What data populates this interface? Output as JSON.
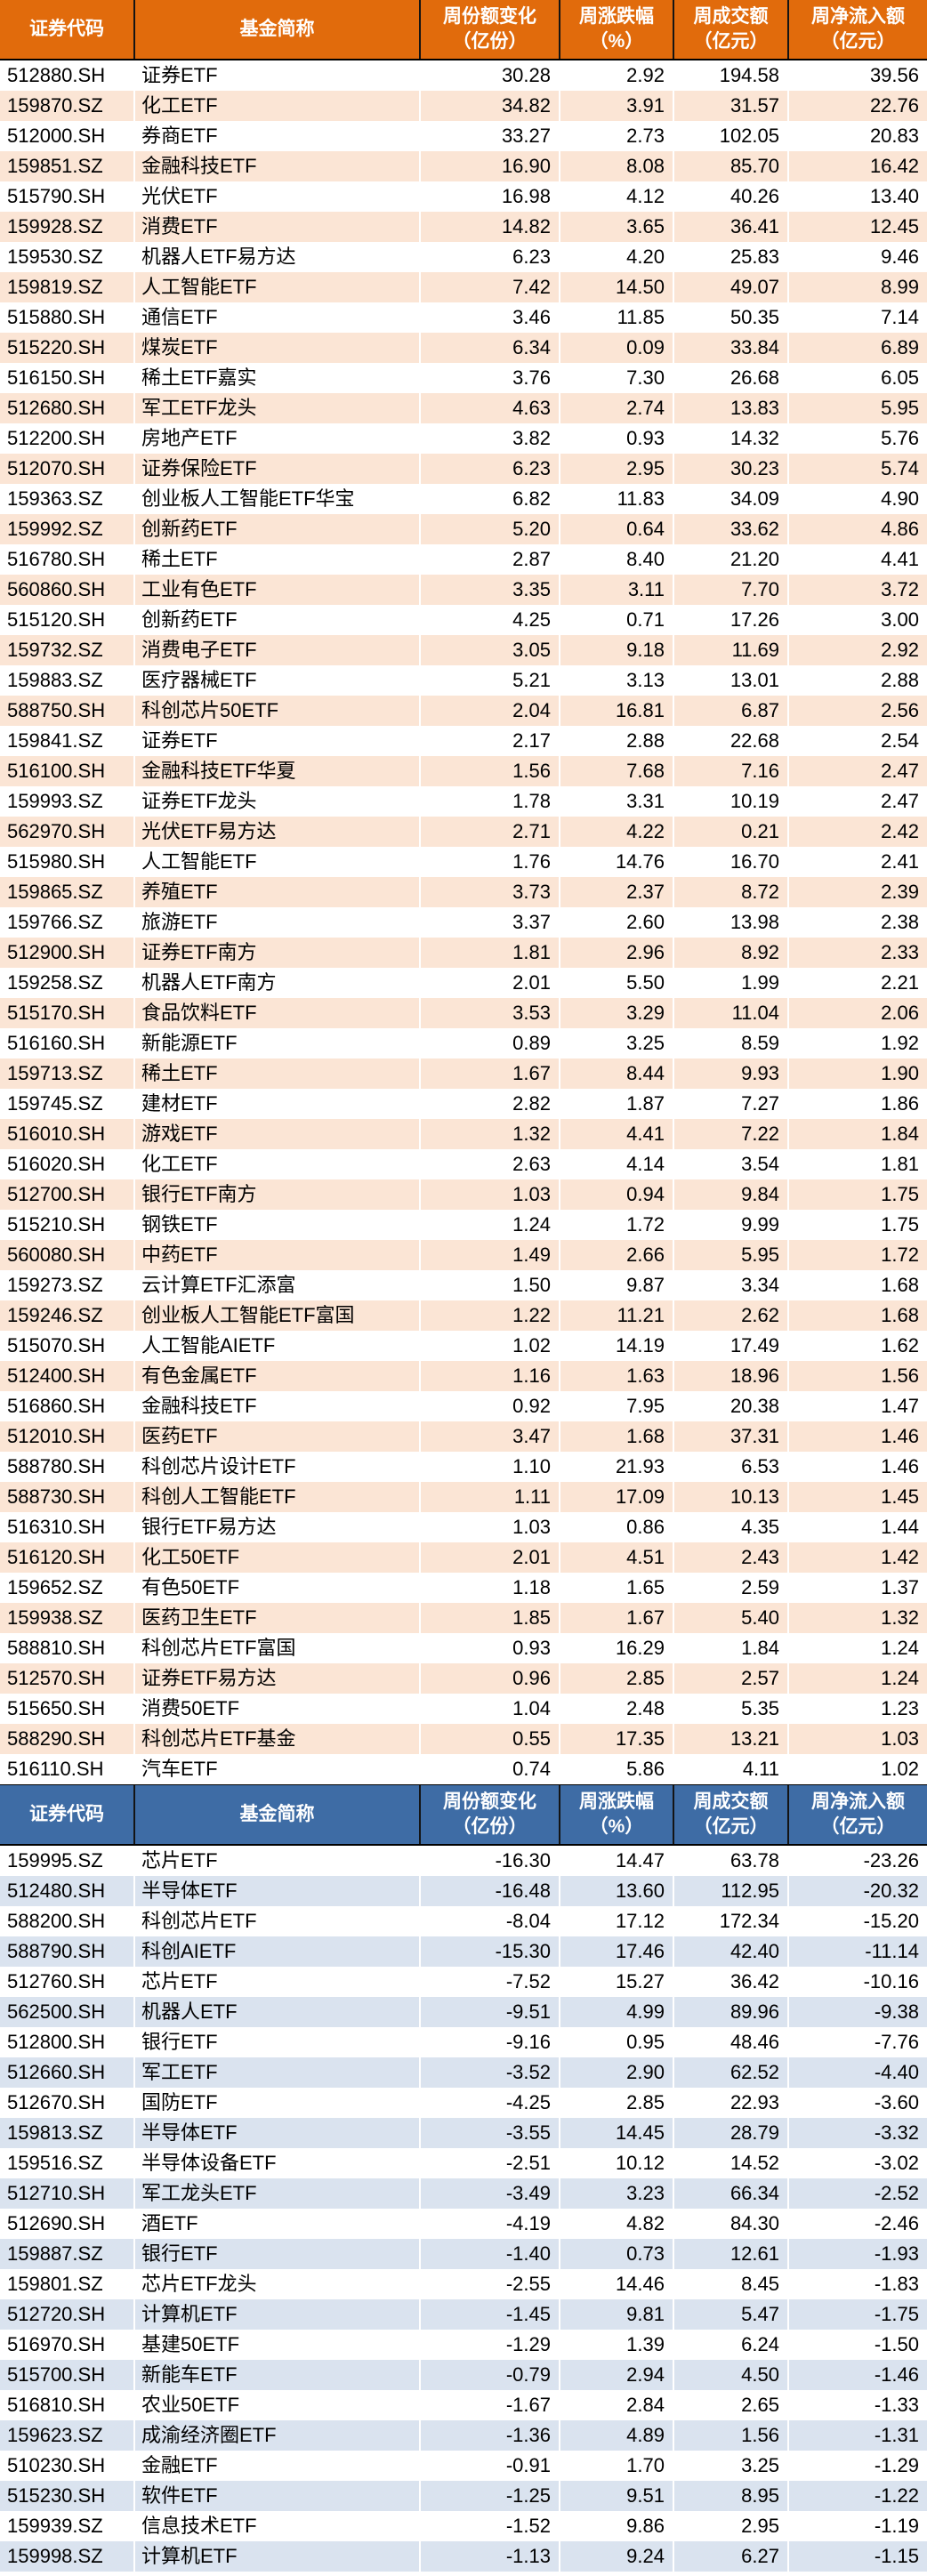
{
  "colors": {
    "orange_header": "#E16B0C",
    "orange_stripe": "#FBE5D5",
    "blue_header": "#3E6CA5",
    "blue_stripe": "#DAE3EF",
    "header_text": "#FFFFFF",
    "body_text": "#000000",
    "divider": "#000000"
  },
  "columns_semantic": [
    "code",
    "name",
    "share_change",
    "pct_change",
    "turnover",
    "net_flow"
  ],
  "tables": [
    {
      "id": "inflow-table",
      "theme": "orange",
      "headers": [
        [
          "证券代码"
        ],
        [
          "基金简称"
        ],
        [
          "周份额变化",
          "（亿份）"
        ],
        [
          "周涨跌幅",
          "（%）"
        ],
        [
          "周成交额",
          "（亿元）"
        ],
        [
          "周净流入额",
          "（亿元）"
        ]
      ],
      "rows": [
        [
          "512880.SH",
          "证券ETF",
          "30.28",
          "2.92",
          "194.58",
          "39.56"
        ],
        [
          "159870.SZ",
          "化工ETF",
          "34.82",
          "3.91",
          "31.57",
          "22.76"
        ],
        [
          "512000.SH",
          "券商ETF",
          "33.27",
          "2.73",
          "102.05",
          "20.83"
        ],
        [
          "159851.SZ",
          "金融科技ETF",
          "16.90",
          "8.08",
          "85.70",
          "16.42"
        ],
        [
          "515790.SH",
          "光伏ETF",
          "16.98",
          "4.12",
          "40.26",
          "13.40"
        ],
        [
          "159928.SZ",
          "消费ETF",
          "14.82",
          "3.65",
          "36.41",
          "12.45"
        ],
        [
          "159530.SZ",
          "机器人ETF易方达",
          "6.23",
          "4.20",
          "25.83",
          "9.46"
        ],
        [
          "159819.SZ",
          "人工智能ETF",
          "7.42",
          "14.50",
          "49.07",
          "8.99"
        ],
        [
          "515880.SH",
          "通信ETF",
          "3.46",
          "11.85",
          "50.35",
          "7.14"
        ],
        [
          "515220.SH",
          "煤炭ETF",
          "6.34",
          "0.09",
          "33.84",
          "6.89"
        ],
        [
          "516150.SH",
          "稀土ETF嘉实",
          "3.76",
          "7.30",
          "26.68",
          "6.05"
        ],
        [
          "512680.SH",
          "军工ETF龙头",
          "4.63",
          "2.74",
          "13.83",
          "5.95"
        ],
        [
          "512200.SH",
          "房地产ETF",
          "3.82",
          "0.93",
          "14.32",
          "5.76"
        ],
        [
          "512070.SH",
          "证券保险ETF",
          "6.23",
          "2.95",
          "30.23",
          "5.74"
        ],
        [
          "159363.SZ",
          "创业板人工智能ETF华宝",
          "6.82",
          "11.83",
          "34.09",
          "4.90"
        ],
        [
          "159992.SZ",
          "创新药ETF",
          "5.20",
          "0.64",
          "33.62",
          "4.86"
        ],
        [
          "516780.SH",
          "稀土ETF",
          "2.87",
          "8.40",
          "21.20",
          "4.41"
        ],
        [
          "560860.SH",
          "工业有色ETF",
          "3.35",
          "3.11",
          "7.70",
          "3.72"
        ],
        [
          "515120.SH",
          "创新药ETF",
          "4.25",
          "0.71",
          "17.26",
          "3.00"
        ],
        [
          "159732.SZ",
          "消费电子ETF",
          "3.05",
          "9.18",
          "11.69",
          "2.92"
        ],
        [
          "159883.SZ",
          "医疗器械ETF",
          "5.21",
          "3.13",
          "13.01",
          "2.88"
        ],
        [
          "588750.SH",
          "科创芯片50ETF",
          "2.04",
          "16.81",
          "6.87",
          "2.56"
        ],
        [
          "159841.SZ",
          "证券ETF",
          "2.17",
          "2.88",
          "22.68",
          "2.54"
        ],
        [
          "516100.SH",
          "金融科技ETF华夏",
          "1.56",
          "7.68",
          "7.16",
          "2.47"
        ],
        [
          "159993.SZ",
          "证券ETF龙头",
          "1.78",
          "3.31",
          "10.19",
          "2.47"
        ],
        [
          "562970.SH",
          "光伏ETF易方达",
          "2.71",
          "4.22",
          "0.21",
          "2.42"
        ],
        [
          "515980.SH",
          "人工智能ETF",
          "1.76",
          "14.76",
          "16.70",
          "2.41"
        ],
        [
          "159865.SZ",
          "养殖ETF",
          "3.73",
          "2.37",
          "8.72",
          "2.39"
        ],
        [
          "159766.SZ",
          "旅游ETF",
          "3.37",
          "2.60",
          "13.98",
          "2.38"
        ],
        [
          "512900.SH",
          "证券ETF南方",
          "1.81",
          "2.96",
          "8.92",
          "2.33"
        ],
        [
          "159258.SZ",
          "机器人ETF南方",
          "2.01",
          "5.50",
          "1.99",
          "2.21"
        ],
        [
          "515170.SH",
          "食品饮料ETF",
          "3.53",
          "3.29",
          "11.04",
          "2.06"
        ],
        [
          "516160.SH",
          "新能源ETF",
          "0.89",
          "3.25",
          "8.59",
          "1.92"
        ],
        [
          "159713.SZ",
          "稀土ETF",
          "1.67",
          "8.44",
          "9.93",
          "1.90"
        ],
        [
          "159745.SZ",
          "建材ETF",
          "2.82",
          "1.87",
          "7.27",
          "1.86"
        ],
        [
          "516010.SH",
          "游戏ETF",
          "1.32",
          "4.41",
          "7.22",
          "1.84"
        ],
        [
          "516020.SH",
          "化工ETF",
          "2.63",
          "4.14",
          "3.54",
          "1.81"
        ],
        [
          "512700.SH",
          "银行ETF南方",
          "1.03",
          "0.94",
          "9.84",
          "1.75"
        ],
        [
          "515210.SH",
          "钢铁ETF",
          "1.24",
          "1.72",
          "9.99",
          "1.75"
        ],
        [
          "560080.SH",
          "中药ETF",
          "1.49",
          "2.66",
          "5.95",
          "1.72"
        ],
        [
          "159273.SZ",
          "云计算ETF汇添富",
          "1.50",
          "9.87",
          "3.34",
          "1.68"
        ],
        [
          "159246.SZ",
          "创业板人工智能ETF富国",
          "1.22",
          "11.21",
          "2.62",
          "1.68"
        ],
        [
          "515070.SH",
          "人工智能AIETF",
          "1.02",
          "14.19",
          "17.49",
          "1.62"
        ],
        [
          "512400.SH",
          "有色金属ETF",
          "1.16",
          "1.63",
          "18.96",
          "1.56"
        ],
        [
          "516860.SH",
          "金融科技ETF",
          "0.92",
          "7.95",
          "20.38",
          "1.47"
        ],
        [
          "512010.SH",
          "医药ETF",
          "3.47",
          "1.68",
          "37.31",
          "1.46"
        ],
        [
          "588780.SH",
          "科创芯片设计ETF",
          "1.10",
          "21.93",
          "6.53",
          "1.46"
        ],
        [
          "588730.SH",
          "科创人工智能ETF",
          "1.11",
          "17.09",
          "10.13",
          "1.45"
        ],
        [
          "516310.SH",
          "银行ETF易方达",
          "1.03",
          "0.86",
          "4.35",
          "1.44"
        ],
        [
          "516120.SH",
          "化工50ETF",
          "2.01",
          "4.51",
          "2.43",
          "1.42"
        ],
        [
          "159652.SZ",
          "有色50ETF",
          "1.18",
          "1.65",
          "2.59",
          "1.37"
        ],
        [
          "159938.SZ",
          "医药卫生ETF",
          "1.85",
          "1.67",
          "5.40",
          "1.32"
        ],
        [
          "588810.SH",
          "科创芯片ETF富国",
          "0.93",
          "16.29",
          "1.84",
          "1.24"
        ],
        [
          "512570.SH",
          "证券ETF易方达",
          "0.96",
          "2.85",
          "2.57",
          "1.24"
        ],
        [
          "515650.SH",
          "消费50ETF",
          "1.04",
          "2.48",
          "5.35",
          "1.23"
        ],
        [
          "588290.SH",
          "科创芯片ETF基金",
          "0.55",
          "17.35",
          "13.21",
          "1.03"
        ],
        [
          "516110.SH",
          "汽车ETF",
          "0.74",
          "5.86",
          "4.11",
          "1.02"
        ]
      ]
    },
    {
      "id": "outflow-table",
      "theme": "blue",
      "headers": [
        [
          "证券代码"
        ],
        [
          "基金简称"
        ],
        [
          "周份额变化",
          "（亿份）"
        ],
        [
          "周涨跌幅",
          "（%）"
        ],
        [
          "周成交额",
          "（亿元）"
        ],
        [
          "周净流入额",
          "（亿元）"
        ]
      ],
      "rows": [
        [
          "159995.SZ",
          "芯片ETF",
          "-16.30",
          "14.47",
          "63.78",
          "-23.26"
        ],
        [
          "512480.SH",
          "半导体ETF",
          "-16.48",
          "13.60",
          "112.95",
          "-20.32"
        ],
        [
          "588200.SH",
          "科创芯片ETF",
          "-8.04",
          "17.12",
          "172.34",
          "-15.20"
        ],
        [
          "588790.SH",
          "科创AIETF",
          "-15.30",
          "17.46",
          "42.40",
          "-11.14"
        ],
        [
          "512760.SH",
          "芯片ETF",
          "-7.52",
          "15.27",
          "36.42",
          "-10.16"
        ],
        [
          "562500.SH",
          "机器人ETF",
          "-9.51",
          "4.99",
          "89.96",
          "-9.38"
        ],
        [
          "512800.SH",
          "银行ETF",
          "-9.16",
          "0.95",
          "48.46",
          "-7.76"
        ],
        [
          "512660.SH",
          "军工ETF",
          "-3.52",
          "2.90",
          "62.52",
          "-4.40"
        ],
        [
          "512670.SH",
          "国防ETF",
          "-4.25",
          "2.85",
          "22.93",
          "-3.60"
        ],
        [
          "159813.SZ",
          "半导体ETF",
          "-3.55",
          "14.45",
          "28.79",
          "-3.32"
        ],
        [
          "159516.SZ",
          "半导体设备ETF",
          "-2.51",
          "10.12",
          "14.52",
          "-3.02"
        ],
        [
          "512710.SH",
          "军工龙头ETF",
          "-3.49",
          "3.23",
          "66.34",
          "-2.52"
        ],
        [
          "512690.SH",
          "酒ETF",
          "-4.19",
          "4.82",
          "84.30",
          "-2.46"
        ],
        [
          "159887.SZ",
          "银行ETF",
          "-1.40",
          "0.73",
          "12.61",
          "-1.93"
        ],
        [
          "159801.SZ",
          "芯片ETF龙头",
          "-2.55",
          "14.46",
          "8.45",
          "-1.83"
        ],
        [
          "512720.SH",
          "计算机ETF",
          "-1.45",
          "9.81",
          "5.47",
          "-1.75"
        ],
        [
          "516970.SH",
          "基建50ETF",
          "-1.29",
          "1.39",
          "6.24",
          "-1.50"
        ],
        [
          "515700.SH",
          "新能车ETF",
          "-0.79",
          "2.94",
          "4.50",
          "-1.46"
        ],
        [
          "516810.SH",
          "农业50ETF",
          "-1.67",
          "2.84",
          "2.65",
          "-1.33"
        ],
        [
          "159623.SZ",
          "成渝经济圈ETF",
          "-1.36",
          "4.89",
          "1.56",
          "-1.31"
        ],
        [
          "510230.SH",
          "金融ETF",
          "-0.91",
          "1.70",
          "3.25",
          "-1.29"
        ],
        [
          "515230.SH",
          "软件ETF",
          "-1.25",
          "9.51",
          "8.95",
          "-1.22"
        ],
        [
          "159939.SZ",
          "信息技术ETF",
          "-1.52",
          "9.86",
          "2.95",
          "-1.19"
        ],
        [
          "159998.SZ",
          "计算机ETF",
          "-1.13",
          "9.24",
          "6.27",
          "-1.15"
        ]
      ]
    }
  ]
}
